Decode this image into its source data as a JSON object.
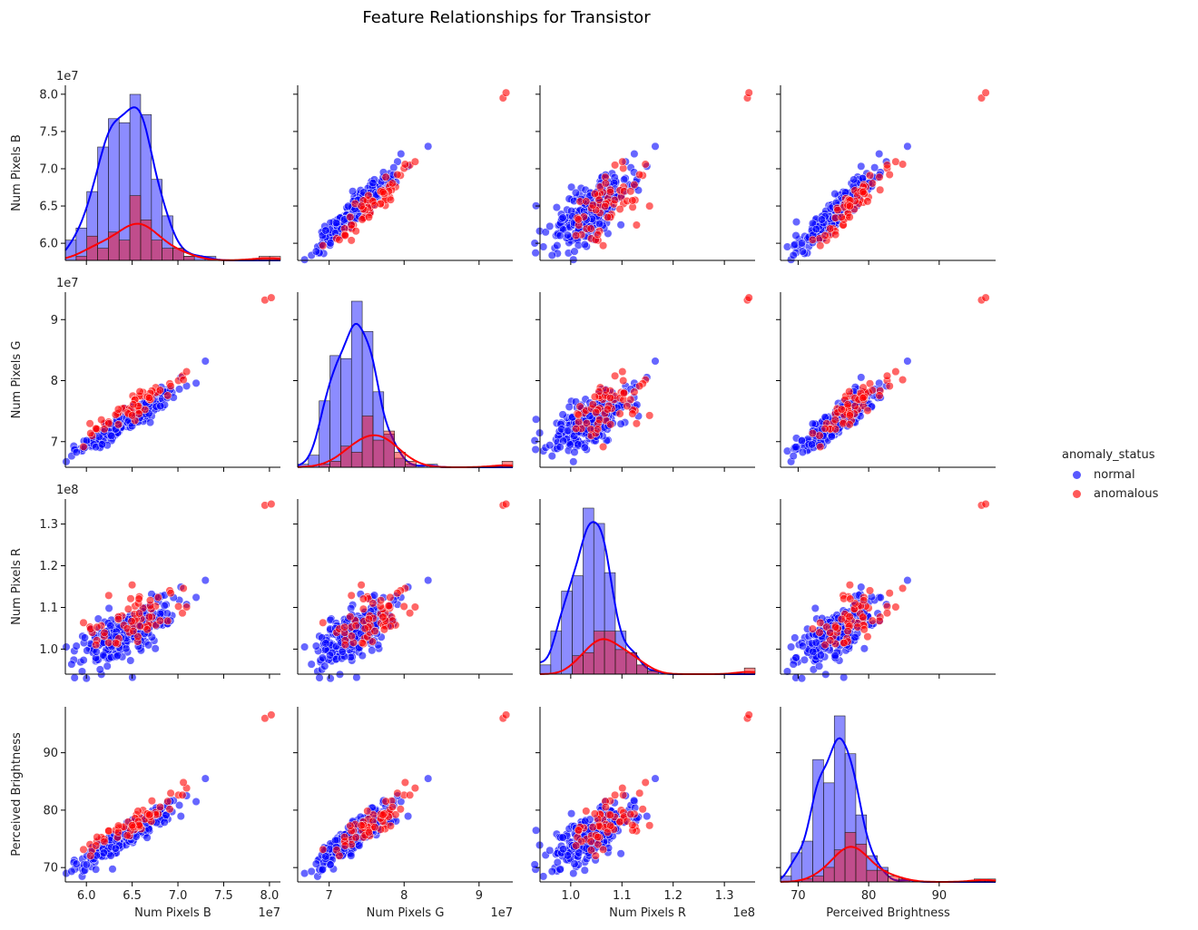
{
  "chart_data": {
    "type": "scatter",
    "title": "Feature Relationships for Transistor",
    "features": [
      {
        "name": "Num Pixels B",
        "offset": "1e7",
        "ticks": [
          6.0,
          6.5,
          7.0,
          7.5,
          8.0
        ],
        "tick_labels": [
          "6.0",
          "6.5",
          "7.0",
          "7.5",
          "8.0"
        ],
        "range": [
          5.77,
          8.12
        ],
        "mean": 6.45,
        "sd": 0.27
      },
      {
        "name": "Num Pixels G",
        "offset": "1e7",
        "ticks": [
          7,
          8,
          9
        ],
        "tick_labels": [
          "7",
          "8",
          "9"
        ],
        "range": [
          6.58,
          9.45
        ],
        "mean": 7.35,
        "sd": 0.28
      },
      {
        "name": "Num Pixels R",
        "offset": "1e8",
        "ticks": [
          1.0,
          1.1,
          1.2,
          1.3
        ],
        "tick_labels": [
          "1.0",
          "1.1",
          "1.2",
          "1.3"
        ],
        "range": [
          0.94,
          1.36
        ],
        "mean": 1.04,
        "sd": 0.036
      },
      {
        "name": "Perceived Brightness",
        "offset": "",
        "ticks": [
          70,
          80,
          90
        ],
        "tick_labels": [
          "70",
          "80",
          "90"
        ],
        "range": [
          67.5,
          98
        ],
        "mean": 75.5,
        "sd": 2.8
      }
    ],
    "hue": {
      "title": "anomaly_status",
      "categories": [
        {
          "name": "normal",
          "color": "#0000ff"
        },
        {
          "name": "anomalous",
          "color": "#ff0000"
        }
      ]
    },
    "outliers": [
      {
        "status": "anomalous",
        "values": [
          7.95,
          9.32,
          1.345,
          96.0
        ]
      },
      {
        "status": "anomalous",
        "values": [
          8.02,
          9.36,
          1.348,
          96.6
        ]
      }
    ],
    "max_normal": {
      "status": "normal",
      "values": [
        7.3,
        8.32,
        1.165,
        85.5
      ]
    },
    "diagonal": "histogram+kde",
    "legend_position": "right",
    "n_normal": 240,
    "n_anomalous": 60
  }
}
